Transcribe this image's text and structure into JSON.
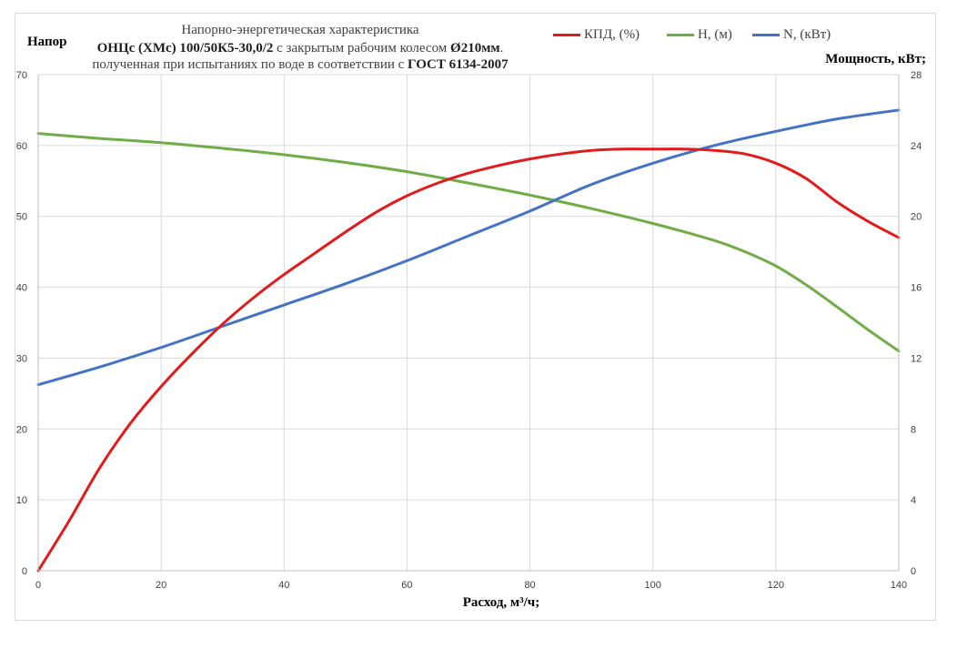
{
  "chart_data": {
    "type": "line",
    "title_lines": [
      [
        {
          "text": "Напорно-энергетическая характеристика",
          "bold": false
        }
      ],
      [
        {
          "text": "ОНЦс (ХМс) 100/50К5-30,0/2",
          "bold": true
        },
        {
          "text": " с закрытым рабочим колесом ",
          "bold": false
        },
        {
          "text": "Ø210мм",
          "bold": true
        },
        {
          "text": ".",
          "bold": false
        }
      ],
      [
        {
          "text": "полученная при испытаниях по воде в соответствии с ",
          "bold": false
        },
        {
          "text": "ГОСТ 6134-2007",
          "bold": true
        }
      ]
    ],
    "xlabel": "Расход, м³/ч;",
    "ylabel_left": "Напор",
    "ylabel_right": "Мощность, кВт;",
    "xlim": [
      0,
      140
    ],
    "ylim_left": [
      0,
      70
    ],
    "ylim_right": [
      0,
      28
    ],
    "x_ticks": [
      0,
      20,
      40,
      60,
      80,
      100,
      120,
      140
    ],
    "y_ticks_left": [
      0,
      10,
      20,
      30,
      40,
      50,
      60,
      70
    ],
    "y_ticks_right": [
      0,
      4,
      8,
      12,
      16,
      20,
      24,
      28
    ],
    "grid": true,
    "legend_position": "top-right",
    "series": [
      {
        "name": "КПД, (%)",
        "axis": "left",
        "color": "#e31a1c",
        "x": [
          0,
          5,
          10,
          15,
          20,
          25,
          30,
          35,
          40,
          45,
          50,
          55,
          60,
          65,
          70,
          75,
          80,
          85,
          90,
          95,
          100,
          105,
          110,
          115,
          120,
          125,
          130,
          135,
          140
        ],
        "y": [
          0,
          7,
          14.5,
          20.8,
          26,
          30.6,
          34.8,
          38.5,
          41.8,
          44.8,
          47.8,
          50.6,
          52.9,
          54.7,
          56.1,
          57.2,
          58.1,
          58.8,
          59.3,
          59.5,
          59.5,
          59.5,
          59.3,
          58.8,
          57.5,
          55.3,
          52.0,
          49.3,
          47
        ]
      },
      {
        "name": "H, (м)",
        "axis": "left",
        "color": "#70ad47",
        "x": [
          0,
          10,
          20,
          30,
          40,
          50,
          60,
          70,
          80,
          90,
          100,
          110,
          115,
          120,
          125,
          130,
          135,
          140
        ],
        "y": [
          61.7,
          61.0,
          60.4,
          59.6,
          58.7,
          57.6,
          56.3,
          54.7,
          53.0,
          51.1,
          49.0,
          46.6,
          45.0,
          43.0,
          40.3,
          37.2,
          34.0,
          31.0
        ]
      },
      {
        "name": "N, (кВт)",
        "axis": "right",
        "color": "#4472c4",
        "x": [
          0,
          10,
          20,
          30,
          40,
          50,
          60,
          70,
          80,
          90,
          100,
          110,
          120,
          130,
          140
        ],
        "y": [
          10.5,
          11.5,
          12.6,
          13.8,
          15.0,
          16.2,
          17.5,
          18.9,
          20.3,
          21.8,
          23.0,
          24.0,
          24.8,
          25.5,
          26.0
        ]
      }
    ]
  }
}
